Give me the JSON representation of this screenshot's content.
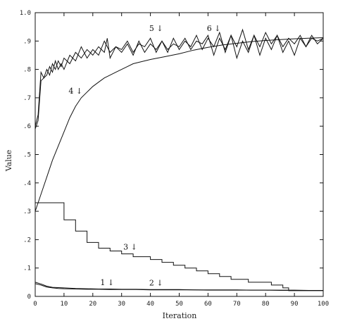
{
  "chart_data": {
    "type": "line",
    "title": "",
    "xlabel": "Iteration",
    "ylabel": "Value",
    "xlim": [
      0,
      100
    ],
    "ylim": [
      0,
      1.0
    ],
    "x_ticks": [
      0,
      10,
      20,
      30,
      40,
      50,
      60,
      70,
      80,
      90,
      100
    ],
    "x_tick_labels": [
      "0",
      "10",
      "20",
      "30",
      "40",
      "50",
      "60",
      "70",
      "80",
      "90",
      "100"
    ],
    "y_ticks": [
      0,
      0.1,
      0.2,
      0.3,
      0.4,
      0.5,
      0.6,
      0.7,
      0.8,
      0.9,
      1.0
    ],
    "y_tick_labels": [
      "0",
      ".1",
      ".2",
      ".3",
      ".4",
      ".5",
      ".6",
      ".7",
      ".8",
      ".9",
      "1.0"
    ],
    "grid": false,
    "annotations": [
      {
        "text": "1 ↓",
        "x": 25,
        "y": 0.025
      },
      {
        "text": "2 ↓",
        "x": 42,
        "y": 0.024
      },
      {
        "text": "3 ↓",
        "x": 33,
        "y": 0.15
      },
      {
        "text": "4 ↓",
        "x": 14,
        "y": 0.7
      },
      {
        "text": "5 ↓",
        "x": 42,
        "y": 0.92
      },
      {
        "text": "6 ↓",
        "x": 62,
        "y": 0.92
      }
    ],
    "series": [
      {
        "x": [
          0,
          2,
          4,
          6,
          8,
          10,
          14,
          18,
          22,
          26,
          30,
          35,
          40,
          45,
          50,
          55,
          60,
          65,
          70,
          75,
          80,
          85,
          90,
          95,
          100
        ],
        "values": [
          0.05,
          0.044,
          0.036,
          0.032,
          0.031,
          0.03,
          0.028,
          0.027,
          0.026,
          0.026,
          0.025,
          0.025,
          0.024,
          0.024,
          0.024,
          0.023,
          0.023,
          0.023,
          0.023,
          0.022,
          0.022,
          0.022,
          0.022,
          0.021,
          0.021
        ]
      },
      {
        "x": [
          0,
          2,
          4,
          6,
          8,
          10,
          14,
          18,
          22,
          26,
          30,
          35,
          40,
          45,
          50,
          55,
          60,
          65,
          70,
          75,
          80,
          85,
          90,
          95,
          100
        ],
        "values": [
          0.045,
          0.04,
          0.033,
          0.03,
          0.028,
          0.027,
          0.026,
          0.025,
          0.025,
          0.024,
          0.024,
          0.024,
          0.023,
          0.023,
          0.023,
          0.023,
          0.022,
          0.022,
          0.022,
          0.022,
          0.022,
          0.021,
          0.021,
          0.021,
          0.021
        ]
      },
      {
        "x": [
          0,
          10,
          10,
          14,
          14,
          18,
          18,
          22,
          22,
          26,
          26,
          30,
          30,
          34,
          34,
          40,
          40,
          44,
          44,
          48,
          48,
          52,
          52,
          56,
          56,
          60,
          60,
          64,
          64,
          68,
          68,
          74,
          74,
          82,
          82,
          86,
          86,
          88,
          88,
          100
        ],
        "values": [
          0.33,
          0.33,
          0.27,
          0.27,
          0.23,
          0.23,
          0.19,
          0.19,
          0.17,
          0.17,
          0.16,
          0.16,
          0.15,
          0.15,
          0.14,
          0.14,
          0.13,
          0.13,
          0.12,
          0.12,
          0.11,
          0.11,
          0.1,
          0.1,
          0.09,
          0.09,
          0.08,
          0.08,
          0.07,
          0.07,
          0.06,
          0.06,
          0.05,
          0.05,
          0.04,
          0.04,
          0.03,
          0.03,
          0.02,
          0.02
        ]
      },
      {
        "x": [
          0,
          2,
          4,
          6,
          8,
          10,
          12,
          14,
          16,
          18,
          20,
          22,
          24,
          26,
          28,
          30,
          32,
          34,
          36,
          38,
          40,
          45,
          50,
          55,
          60,
          65,
          70,
          75,
          80,
          85,
          90,
          95,
          100
        ],
        "values": [
          0.3,
          0.36,
          0.42,
          0.48,
          0.53,
          0.58,
          0.63,
          0.67,
          0.7,
          0.72,
          0.74,
          0.755,
          0.77,
          0.78,
          0.79,
          0.8,
          0.81,
          0.82,
          0.825,
          0.83,
          0.835,
          0.845,
          0.855,
          0.868,
          0.878,
          0.886,
          0.892,
          0.898,
          0.902,
          0.905,
          0.908,
          0.91,
          0.912
        ]
      },
      {
        "x": [
          0,
          1,
          2,
          3,
          4,
          5,
          6,
          7,
          8,
          9,
          10,
          12,
          14,
          16,
          18,
          20,
          22,
          24,
          25,
          26,
          28,
          30,
          32,
          34,
          36,
          38,
          40,
          42,
          44,
          46,
          48,
          50,
          52,
          54,
          56,
          58,
          60,
          62,
          64,
          66,
          68,
          70,
          72,
          74,
          76,
          78,
          80,
          82,
          84,
          86,
          88,
          90,
          92,
          94,
          96,
          98,
          100
        ],
        "values": [
          0.6,
          0.64,
          0.79,
          0.77,
          0.8,
          0.78,
          0.82,
          0.8,
          0.83,
          0.81,
          0.84,
          0.82,
          0.86,
          0.84,
          0.87,
          0.85,
          0.88,
          0.86,
          0.91,
          0.84,
          0.88,
          0.86,
          0.89,
          0.85,
          0.9,
          0.86,
          0.89,
          0.87,
          0.9,
          0.86,
          0.91,
          0.87,
          0.9,
          0.88,
          0.92,
          0.87,
          0.91,
          0.88,
          0.93,
          0.86,
          0.92,
          0.88,
          0.94,
          0.87,
          0.92,
          0.88,
          0.93,
          0.89,
          0.92,
          0.88,
          0.91,
          0.89,
          0.92,
          0.88,
          0.91,
          0.9,
          0.91
        ]
      },
      {
        "x": [
          0,
          1,
          2,
          3,
          4,
          5,
          6,
          7,
          8,
          9,
          10,
          12,
          14,
          16,
          18,
          20,
          22,
          24,
          26,
          28,
          30,
          32,
          34,
          36,
          38,
          40,
          42,
          44,
          46,
          48,
          50,
          52,
          54,
          56,
          58,
          60,
          62,
          64,
          66,
          68,
          70,
          72,
          74,
          76,
          78,
          80,
          82,
          84,
          86,
          88,
          90,
          92,
          94,
          96,
          98,
          100
        ],
        "values": [
          0.59,
          0.62,
          0.76,
          0.77,
          0.78,
          0.81,
          0.79,
          0.83,
          0.8,
          0.82,
          0.8,
          0.85,
          0.83,
          0.88,
          0.84,
          0.87,
          0.85,
          0.9,
          0.86,
          0.88,
          0.87,
          0.9,
          0.86,
          0.89,
          0.88,
          0.91,
          0.86,
          0.9,
          0.87,
          0.89,
          0.88,
          0.91,
          0.87,
          0.9,
          0.89,
          0.92,
          0.85,
          0.91,
          0.87,
          0.92,
          0.84,
          0.9,
          0.86,
          0.92,
          0.85,
          0.91,
          0.87,
          0.92,
          0.86,
          0.9,
          0.85,
          0.91,
          0.88,
          0.92,
          0.89,
          0.91
        ]
      }
    ]
  }
}
